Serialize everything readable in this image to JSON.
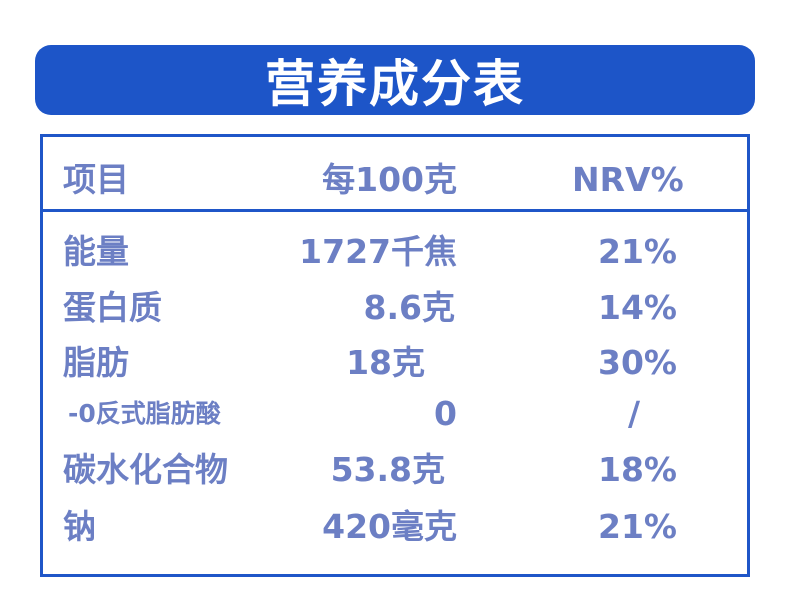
{
  "header": {
    "title": "营养成分表"
  },
  "table": {
    "columns": [
      "项目",
      "每100克",
      "NRV%"
    ],
    "rows": [
      [
        "能量",
        "1727千焦",
        "21%"
      ],
      [
        "蛋白质",
        "8.6克",
        "14%"
      ],
      [
        "脂肪",
        "18克",
        "30%"
      ],
      [
        "-0反式脂肪酸",
        "0",
        "/"
      ],
      [
        "碳水化合物",
        "53.8克",
        "18%"
      ],
      [
        "钠",
        "420毫克",
        "21%"
      ]
    ]
  }
}
